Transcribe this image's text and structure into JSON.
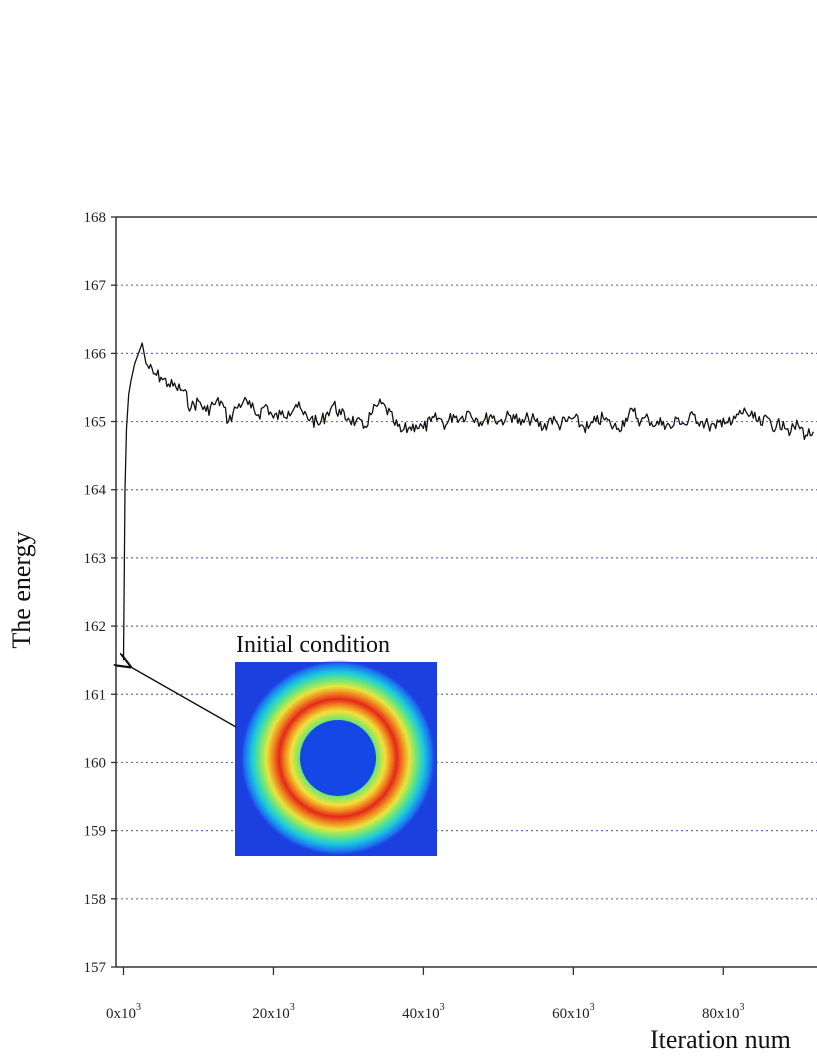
{
  "chart_data": {
    "type": "line",
    "xlabel": "Iteration num",
    "ylabel": "The energy",
    "xlim": [
      -1000,
      92500
    ],
    "ylim": [
      157,
      168
    ],
    "y_ticks": [
      157,
      158,
      159,
      160,
      161,
      162,
      163,
      164,
      165,
      166,
      167,
      168
    ],
    "x_ticks": [
      {
        "base": "0x10",
        "exp": "3",
        "value": 0
      },
      {
        "base": "20x10",
        "exp": "3",
        "value": 20000
      },
      {
        "base": "40x10",
        "exp": "3",
        "value": 40000
      },
      {
        "base": "60x10",
        "exp": "3",
        "value": 60000
      },
      {
        "base": "80x10",
        "exp": "3",
        "value": 80000
      }
    ],
    "grid": {
      "horizontal": true,
      "style": "dotted",
      "color": "#6a6ad0"
    },
    "series": [
      {
        "color": "#111111",
        "x": [
          0,
          200,
          400,
          700,
          1000,
          1500,
          2000,
          2500,
          3000,
          4000,
          5000,
          6000,
          7000,
          8000,
          9000,
          10000,
          11000,
          12000,
          13000,
          14000,
          15000,
          16000,
          17000,
          18000,
          19000,
          20000,
          21000,
          22000,
          23000,
          24000,
          25000,
          26000,
          27000,
          28000,
          29000,
          30000,
          31000,
          32000,
          33000,
          34000,
          35000,
          36000,
          37000,
          38000,
          39000,
          40000,
          41000,
          42000,
          43000,
          44000,
          45000,
          46000,
          47000,
          48000,
          49000,
          50000,
          51000,
          52000,
          53000,
          54000,
          55000,
          56000,
          57000,
          58000,
          59000,
          60000,
          61000,
          62000,
          63000,
          64000,
          65000,
          66000,
          67000,
          68000,
          69000,
          70000,
          71000,
          72000,
          73000,
          74000,
          75000,
          76000,
          77000,
          78000,
          79000,
          80000,
          81000,
          82000,
          83000,
          84000,
          85000,
          86000,
          87000,
          88000,
          89000,
          90000,
          91000,
          92000
        ],
        "y": [
          161.5,
          164.0,
          164.9,
          165.4,
          165.6,
          165.85,
          166.0,
          166.15,
          165.85,
          165.7,
          165.65,
          165.55,
          165.5,
          165.45,
          165.2,
          165.3,
          165.15,
          165.25,
          165.3,
          165.0,
          165.2,
          165.3,
          165.2,
          165.1,
          165.25,
          165.05,
          165.1,
          165.15,
          165.25,
          165.1,
          165.05,
          164.95,
          165.1,
          165.25,
          165.1,
          165.05,
          165.0,
          164.9,
          165.1,
          165.25,
          165.2,
          165.0,
          164.85,
          164.9,
          164.95,
          164.9,
          165.0,
          165.05,
          164.95,
          165.1,
          165.05,
          165.15,
          165.05,
          165.0,
          165.1,
          165.0,
          165.05,
          165.1,
          164.95,
          165.05,
          165.0,
          164.9,
          165.05,
          164.95,
          165.0,
          165.05,
          164.95,
          164.9,
          165.0,
          165.05,
          164.95,
          164.9,
          165.05,
          165.15,
          165.0,
          165.05,
          164.95,
          165.0,
          164.9,
          165.05,
          164.95,
          165.1,
          165.0,
          164.95,
          164.9,
          165.05,
          164.95,
          165.1,
          165.15,
          165.05,
          164.95,
          165.05,
          164.9,
          165.0,
          164.85,
          164.95,
          164.8,
          164.85
        ]
      }
    ],
    "annotations": [
      {
        "text": "Initial condition",
        "arrow_to": {
          "x": 100,
          "y": 161.5
        }
      }
    ],
    "inset": {
      "description_color_map": "jet",
      "background": "#1c3fe0"
    }
  }
}
